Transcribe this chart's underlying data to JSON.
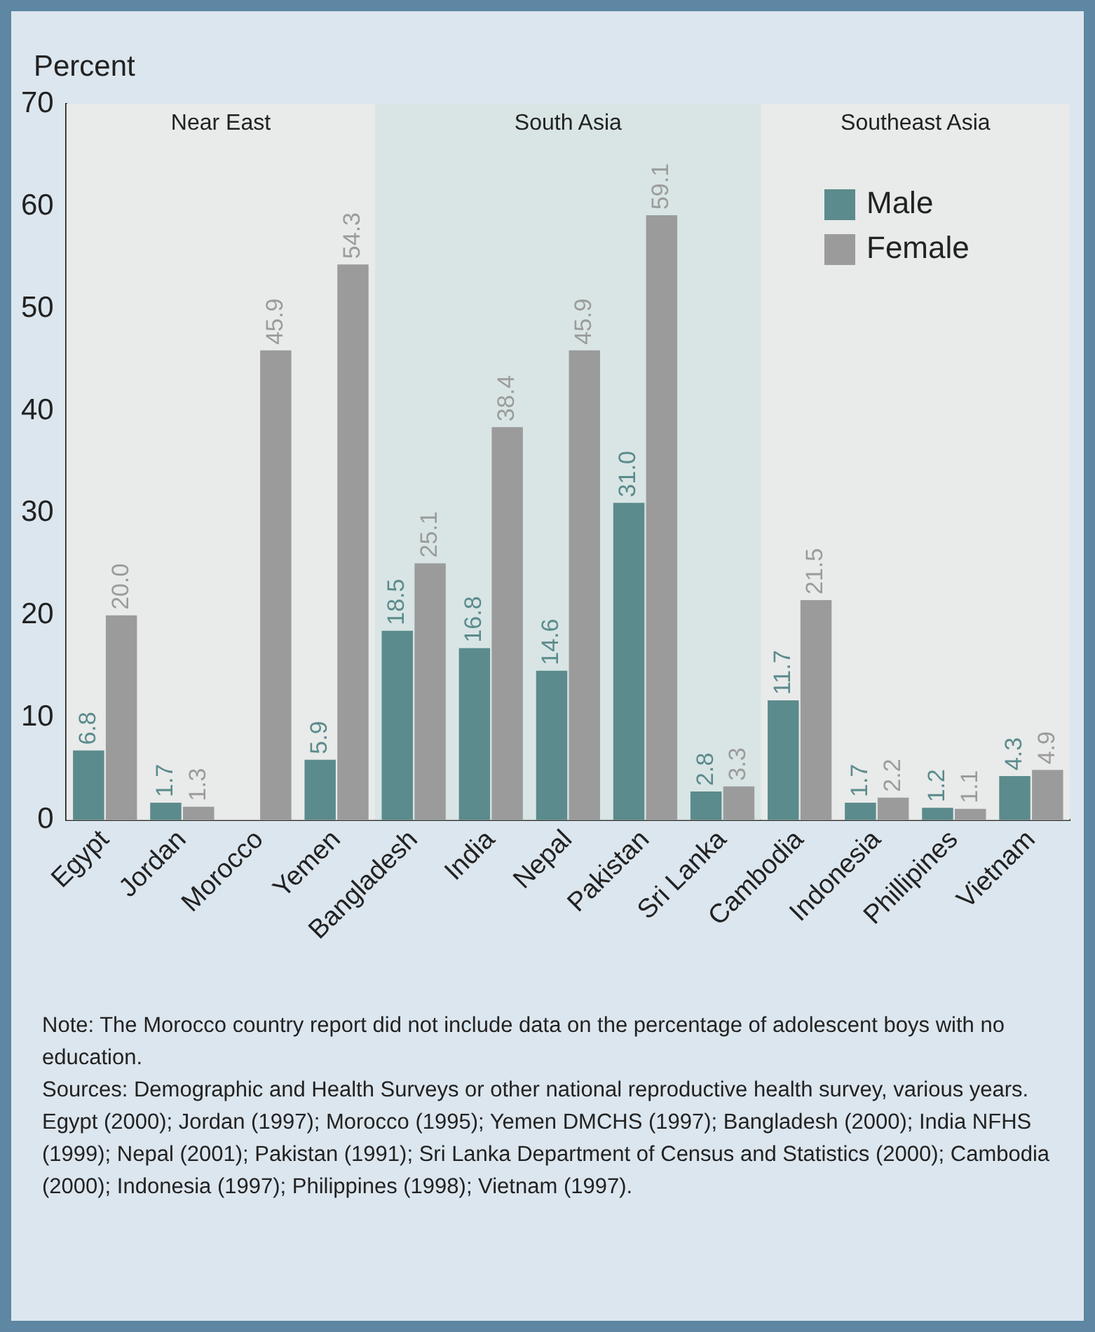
{
  "chart_data": {
    "type": "bar",
    "ylabel": "Percent",
    "categories": [
      "Egypt",
      "Jordan",
      "Morocco",
      "Yemen",
      "Bangladesh",
      "India",
      "Nepal",
      "Pakistan",
      "Sri Lanka",
      "Cambodia",
      "Indonesia",
      "Phillipines",
      "Vietnam"
    ],
    "series": [
      {
        "name": "Male",
        "color": "#5b8b8c",
        "values": [
          6.8,
          1.7,
          null,
          5.9,
          18.5,
          16.8,
          14.6,
          31.0,
          2.8,
          11.7,
          1.7,
          1.2,
          4.3
        ],
        "value_labels": [
          "6.8",
          "1.7",
          null,
          "5.9",
          "18.5",
          "16.8",
          "14.6",
          "31.0",
          "2.8",
          "11.7",
          "1.7",
          "1.2",
          "4.3"
        ]
      },
      {
        "name": "Female",
        "color": "#9b9b9b",
        "values": [
          20.0,
          1.3,
          45.9,
          54.3,
          25.1,
          38.4,
          45.9,
          59.1,
          3.3,
          21.5,
          2.2,
          1.1,
          4.9
        ],
        "value_labels": [
          "20.0",
          "1.3",
          "45.9",
          "54.3",
          "25.1",
          "38.4",
          "45.9",
          "59.1",
          "3.3",
          "21.5",
          "2.2",
          "1.1",
          "4.9"
        ]
      }
    ],
    "ylim": [
      0,
      70
    ],
    "yticks": [
      0,
      10,
      20,
      30,
      40,
      50,
      60,
      70
    ],
    "grid": false,
    "legend": "top right",
    "bands": [
      {
        "axis": "x",
        "from": "Egypt",
        "to": "Yemen",
        "label": "Near East",
        "color": "#e9eaea"
      },
      {
        "axis": "x",
        "from": "Bangladesh",
        "to": "Sri Lanka",
        "label": "South Asia",
        "color": "#d9e5e5"
      },
      {
        "axis": "x",
        "from": "Cambodia",
        "to": "Vietnam",
        "label": "Southeast Asia",
        "color": "#e9eaea"
      }
    ],
    "annotations": [
      "Note: The Morocco country report did not include data on the percentage of adolescent boys with no education.",
      "Sources: Demographic and Health Surveys or other national reproductive health survey, various years. Egypt (2000); Jordan (1997); Morocco (1995); Yemen DMCHS (1997); Bangladesh (2000); India NFHS (1999); Nepal (2001); Pakistan (1991); Sri Lanka Department of Census and Statistics (2000); Cambodia (2000); Indonesia (1997); Philippines (1998); Vietnam (1997)."
    ]
  }
}
